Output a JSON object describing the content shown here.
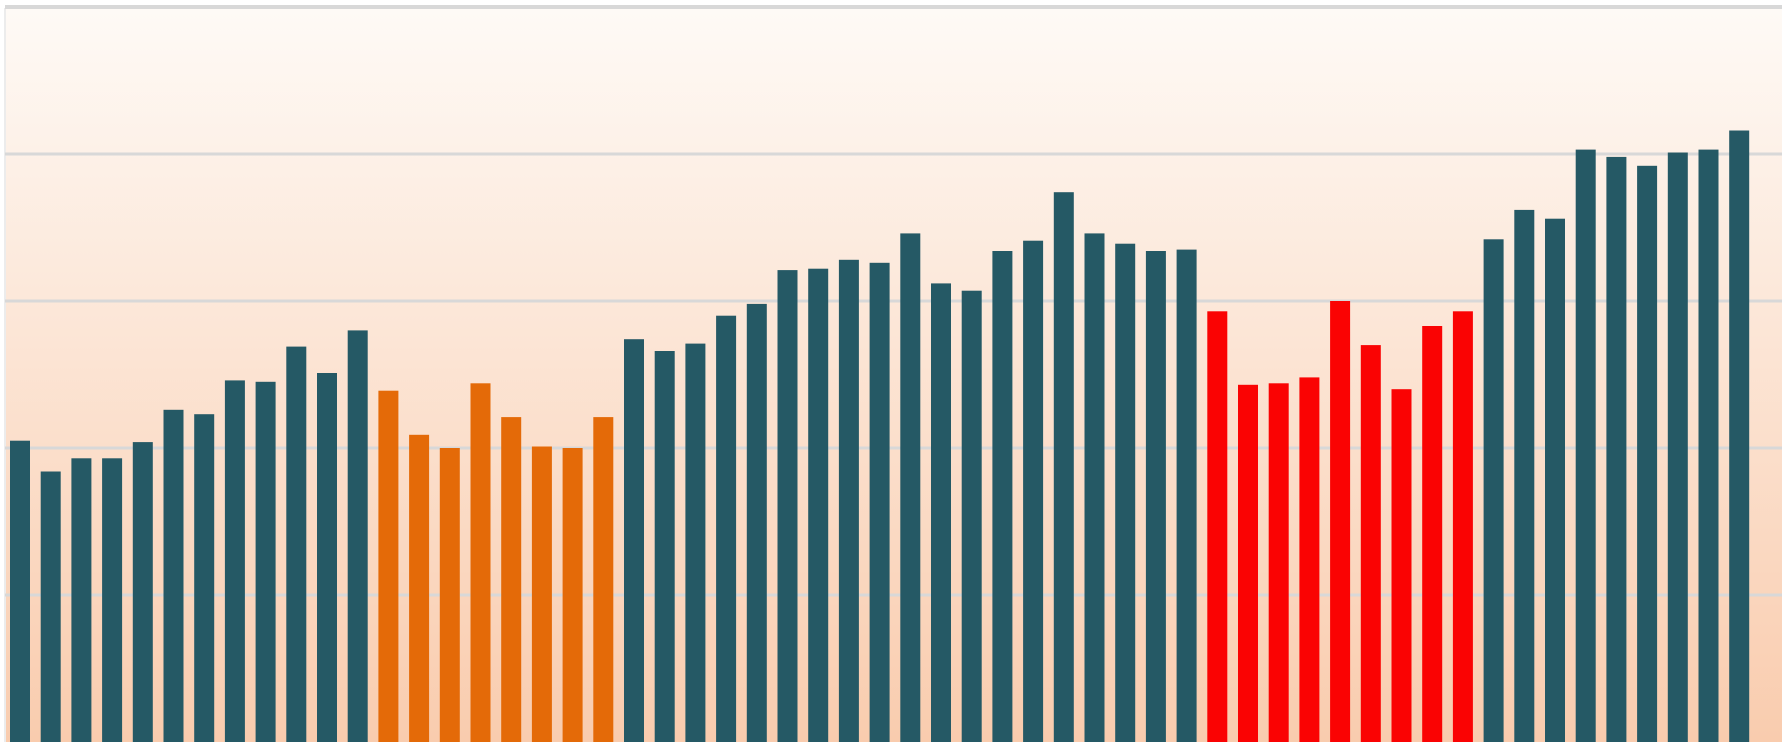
{
  "chart_data": {
    "type": "bar",
    "title": "",
    "xlabel": "",
    "ylabel": "",
    "ylim": [
      0,
      5
    ],
    "grid": true,
    "gridlines": [
      1,
      2,
      3,
      4,
      5
    ],
    "legend": "none",
    "colors": {
      "background_top": "#fefaf6",
      "background_bottom": "#f9ccae",
      "grid": "#d8d8d8",
      "teal": "#255965",
      "orange": "#e46a08",
      "red": "#fa0303"
    },
    "values": [
      2.05,
      1.84,
      1.93,
      1.93,
      2.04,
      2.26,
      2.23,
      2.46,
      2.45,
      2.69,
      2.51,
      2.8,
      2.39,
      2.09,
      2.0,
      2.44,
      2.21,
      2.01,
      2.0,
      2.21,
      2.74,
      2.66,
      2.71,
      2.9,
      2.98,
      3.21,
      3.22,
      3.28,
      3.26,
      3.46,
      3.12,
      3.07,
      3.34,
      3.41,
      3.74,
      3.46,
      3.39,
      3.34,
      3.35,
      2.93,
      2.43,
      2.44,
      2.48,
      3.0,
      2.7,
      2.4,
      2.83,
      2.93,
      3.42,
      3.62,
      3.56,
      4.03,
      3.98,
      3.92,
      4.01,
      4.03,
      4.16
    ],
    "bar_colors": [
      "teal",
      "teal",
      "teal",
      "teal",
      "teal",
      "teal",
      "teal",
      "teal",
      "teal",
      "teal",
      "teal",
      "teal",
      "orange",
      "orange",
      "orange",
      "orange",
      "orange",
      "orange",
      "orange",
      "orange",
      "teal",
      "teal",
      "teal",
      "teal",
      "teal",
      "teal",
      "teal",
      "teal",
      "teal",
      "teal",
      "teal",
      "teal",
      "teal",
      "teal",
      "teal",
      "teal",
      "teal",
      "teal",
      "teal",
      "red",
      "red",
      "red",
      "red",
      "red",
      "red",
      "red",
      "red",
      "red",
      "teal",
      "teal",
      "teal",
      "teal",
      "teal",
      "teal",
      "teal",
      "teal",
      "teal"
    ]
  }
}
